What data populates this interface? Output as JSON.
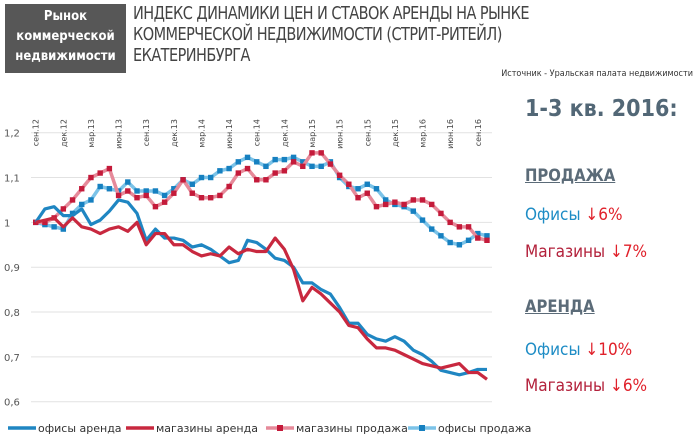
{
  "badge": {
    "line1": "Рынок",
    "line2": "коммерческой",
    "line3": "недвижимости"
  },
  "title": {
    "line1": "ИНДЕКС ДИНАМИКИ ЦЕН И СТАВОК АРЕНДЫ НА РЫНКЕ",
    "line2": "КОММЕРЧЕСКОЙ НЕДВИЖИМОСТИ (СТРИТ-РИТЕЙЛ)",
    "line3": "ЕКАТЕРИНБУРГА"
  },
  "source": "Источник - Уральская палата недвижимости",
  "summary": {
    "period": "1-3 кв. 2016:",
    "sale": {
      "header": "ПРОДАЖА",
      "offices_label": "Офисы",
      "offices_value": "↓6%",
      "shops_label": "Магазины",
      "shops_value": "↓7%"
    },
    "rent": {
      "header": "АРЕНДА",
      "offices_label": "Офисы",
      "offices_value": "↓10%",
      "shops_label": "Магазины",
      "shops_value": "↓6%"
    }
  },
  "chart_data": {
    "type": "line",
    "ylim": [
      0.6,
      1.2
    ],
    "yticks": [
      "1,2",
      "1,1",
      "1",
      "0,9",
      "0,8",
      "0,7",
      "0,6"
    ],
    "ytick_values": [
      1.2,
      1.1,
      1.0,
      0.9,
      0.8,
      0.7,
      0.6
    ],
    "xticks": [
      "сен.12",
      "дек.12",
      "мар.13",
      "июн.13",
      "сен.13",
      "дек.13",
      "мар.14",
      "июн.14",
      "сен.14",
      "дек.14",
      "мар.15",
      "июн.15",
      "сен.15",
      "дек.15",
      "мар.16",
      "июн.16",
      "сен.16"
    ],
    "xtick_step_months": 3,
    "grid": true,
    "legend_position": "bottom",
    "series": [
      {
        "name": "офисы аренда",
        "color": "#1f86c2",
        "markers": false,
        "values": [
          1.0,
          1.03,
          1.035,
          1.015,
          1.015,
          1.03,
          0.995,
          1.005,
          1.025,
          1.05,
          1.045,
          1.02,
          0.96,
          0.985,
          0.965,
          0.965,
          0.96,
          0.945,
          0.95,
          0.94,
          0.925,
          0.91,
          0.915,
          0.96,
          0.955,
          0.94,
          0.92,
          0.915,
          0.9,
          0.865,
          0.865,
          0.85,
          0.84,
          0.81,
          0.775,
          0.775,
          0.75,
          0.74,
          0.735,
          0.745,
          0.735,
          0.715,
          0.705,
          0.69,
          0.67,
          0.665,
          0.66,
          0.665,
          0.672,
          0.672
        ]
      },
      {
        "name": "магазины аренда",
        "color": "#c8283f",
        "markers": false,
        "values": [
          1.0,
          1.005,
          1.01,
          0.99,
          1.01,
          0.99,
          0.985,
          0.975,
          0.985,
          0.99,
          0.98,
          1.0,
          0.95,
          0.975,
          0.975,
          0.95,
          0.95,
          0.935,
          0.925,
          0.93,
          0.925,
          0.945,
          0.93,
          0.94,
          0.935,
          0.935,
          0.965,
          0.94,
          0.895,
          0.825,
          0.855,
          0.84,
          0.82,
          0.8,
          0.77,
          0.765,
          0.74,
          0.72,
          0.72,
          0.715,
          0.705,
          0.695,
          0.685,
          0.68,
          0.675,
          0.68,
          0.685,
          0.665,
          0.665,
          0.65
        ]
      },
      {
        "name": "магазины продажа",
        "color": "#e68a9a",
        "marker_color": "#c41a3a",
        "markers": true,
        "values": [
          1.0,
          1.0,
          1.01,
          1.03,
          1.05,
          1.075,
          1.1,
          1.11,
          1.12,
          1.06,
          1.07,
          1.055,
          1.06,
          1.035,
          1.045,
          1.065,
          1.095,
          1.065,
          1.055,
          1.055,
          1.06,
          1.08,
          1.11,
          1.12,
          1.095,
          1.095,
          1.11,
          1.115,
          1.135,
          1.125,
          1.155,
          1.155,
          1.13,
          1.105,
          1.085,
          1.055,
          1.065,
          1.035,
          1.04,
          1.045,
          1.04,
          1.05,
          1.05,
          1.04,
          1.02,
          1.0,
          0.99,
          0.99,
          0.965,
          0.96
        ]
      },
      {
        "name": "офисы продажа",
        "color": "#7cc3e8",
        "marker_color": "#1680c0",
        "markers": true,
        "values": [
          1.0,
          0.995,
          0.99,
          0.985,
          1.02,
          1.04,
          1.05,
          1.08,
          1.075,
          1.07,
          1.09,
          1.07,
          1.07,
          1.07,
          1.06,
          1.075,
          1.095,
          1.085,
          1.1,
          1.1,
          1.115,
          1.12,
          1.135,
          1.145,
          1.135,
          1.125,
          1.14,
          1.14,
          1.145,
          1.135,
          1.125,
          1.125,
          1.135,
          1.1,
          1.08,
          1.075,
          1.085,
          1.075,
          1.05,
          1.04,
          1.035,
          1.025,
          1.005,
          0.985,
          0.97,
          0.955,
          0.95,
          0.96,
          0.975,
          0.97
        ]
      }
    ]
  }
}
